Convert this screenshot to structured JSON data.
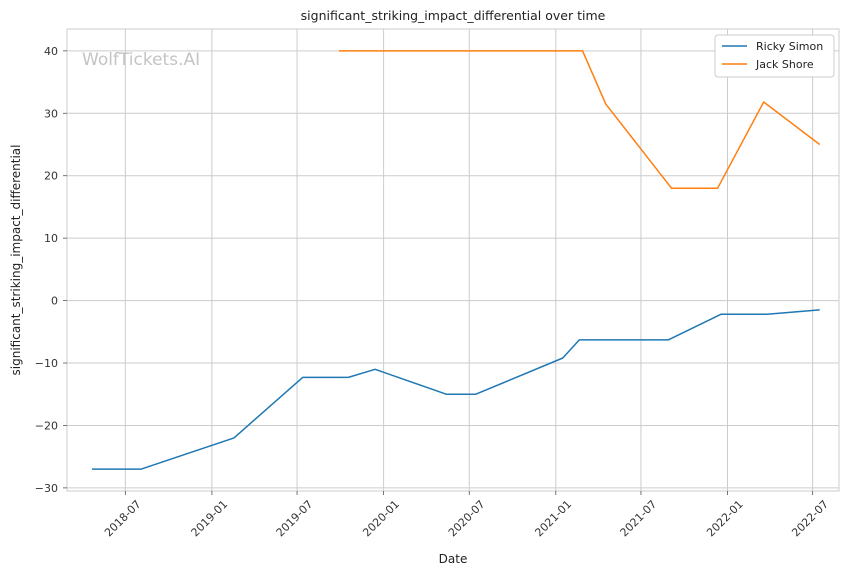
{
  "chart_data": {
    "type": "line",
    "title": "significant_striking_impact_differential over time",
    "xlabel": "Date",
    "ylabel": "significant_striking_impact_differential",
    "watermark": "WolfTickets.AI",
    "grid": true,
    "legend_position": "top-right",
    "x_ticks": [
      "2018-07",
      "2019-01",
      "2019-07",
      "2020-01",
      "2020-07",
      "2021-01",
      "2021-07",
      "2022-01",
      "2022-07"
    ],
    "y_ticks": [
      "40",
      "30",
      "20",
      "10",
      "0",
      "−10",
      "−20",
      "−30"
    ],
    "xlim": [
      "2018-02-27",
      "2022-08-26"
    ],
    "ylim": [
      -30.5,
      43.5
    ],
    "series": [
      {
        "name": "Ricky Simon",
        "color": "#1f77b4",
        "x": [
          "2018-04-21",
          "2018-08-04",
          "2019-02-17",
          "2019-07-13",
          "2019-10-18",
          "2019-12-14",
          "2020-05-13",
          "2020-07-15",
          "2021-01-16",
          "2021-02-20",
          "2021-08-28",
          "2021-12-18",
          "2022-03-26",
          "2022-07-16"
        ],
        "y": [
          -27,
          -27,
          -22,
          -12.3,
          -12.3,
          -11,
          -15,
          -15,
          -9.2,
          -6.3,
          -6.3,
          -2.2,
          -2.2,
          -1.5
        ]
      },
      {
        "name": "Jack Shore",
        "color": "#ff7f0e",
        "x": [
          "2019-09-28",
          "2021-02-27",
          "2021-04-17",
          "2021-09-04",
          "2021-12-11",
          "2022-03-19",
          "2022-07-16"
        ],
        "y": [
          40,
          40,
          31.5,
          18,
          18,
          31.8,
          25
        ]
      }
    ]
  }
}
